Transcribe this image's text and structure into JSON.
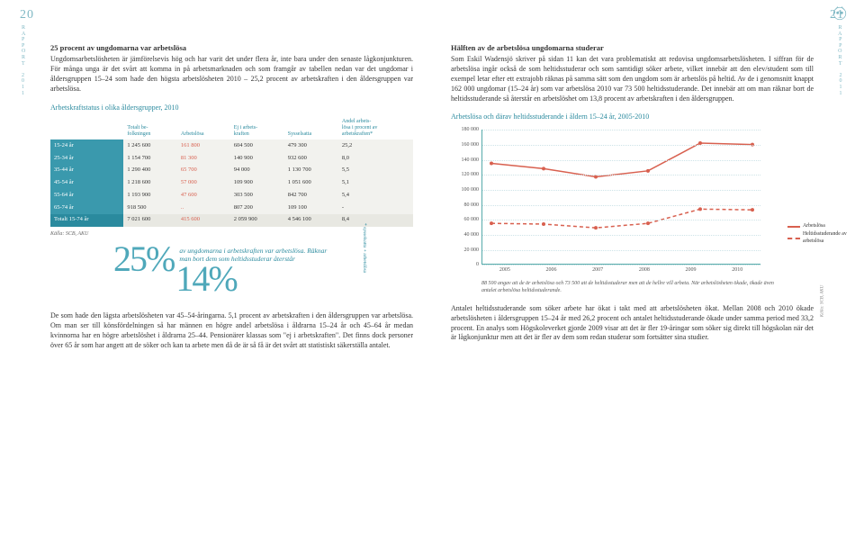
{
  "page_left_num": "20",
  "page_right_num": "21",
  "rapport_chars": "R\nA\nP\nP\nO\nR\nT\n2\n0\n1\n1",
  "left": {
    "h1": "25 procent av ungdomarna var arbetslösa",
    "p1": "Ungdomsarbetslösheten är jämförelsevis hög och har varit det under flera år, inte bara under den senaste lågkonjunkturen. För många unga är det svårt att komma in på arbetsmarknaden och som framgår av tabellen nedan var det ungdomar i åldersgruppen 15–24 som hade den högsta arbetslösheten 2010 – 25,2 procent av arbetskraften i den åldersgruppen var arbetslösa.",
    "table_title": "Arbetskraftstatus i olika åldersgrupper, 2010",
    "th": [
      "",
      "Totalt be-\nfolkningen",
      "Arbetslösa",
      "Ej i arbets-\nkraften",
      "Sysselsatta",
      "Andel arbets-\nlösa i procent av\narbetskraften*"
    ],
    "rows": [
      {
        "age": "15-24 år",
        "cells": [
          "1 245 600",
          "161 800",
          "604 500",
          "479 300",
          "25,2"
        ]
      },
      {
        "age": "25-34 år",
        "cells": [
          "1 154 700",
          "81 300",
          "140 900",
          "932 600",
          "8,0"
        ]
      },
      {
        "age": "35-44 år",
        "cells": [
          "1 290 400",
          "65 700",
          "94 000",
          "1 130 700",
          "5,5"
        ]
      },
      {
        "age": "45-54 år",
        "cells": [
          "1 218 600",
          "57 000",
          "109 900",
          "1 051 600",
          "5,1"
        ]
      },
      {
        "age": "55-64 år",
        "cells": [
          "1 193 900",
          "47 600",
          "303 500",
          "842 700",
          "5,4"
        ]
      },
      {
        "age": "65-74 år",
        "cells": [
          "918 500",
          "..",
          "807 200",
          "109 100",
          "-"
        ]
      }
    ],
    "total_row": {
      "age": "Totalt 15-74 år",
      "cells": [
        "7 021 600",
        "415 600",
        "2 059 900",
        "4 546 100",
        "8,4"
      ]
    },
    "source": "Källa: SCB, AKU",
    "side_note": "* sysselsatta + arbetslösa",
    "pct25": "25%",
    "pct_desc_a": "av ungdomarna i arbetskraften var arbetslösa. Räknar man bort dem som heltidsstuderar återstår",
    "pct14": "14%",
    "p2": "De som hade den lägsta arbetslösheten var 45–54-åringarna. 5,1 procent av arbetskraften i den åldersgruppen var arbetslösa. Om man ser till könsfördelningen så har männen en högre andel arbetslösa i åldrarna 15–24 år och 45–64 år medan kvinnorna har en högre arbetslöshet i åldrarna 25–44. Pensionärer klassas som \"ej i arbetskraften\". Det finns dock personer över 65 år som har angett att de söker och kan ta arbete men då de är så få är det svårt att statistiskt säkerställa antalet."
  },
  "right": {
    "h1": "Hälften av de arbetslösa ungdomarna studerar",
    "p1": "Som Eskil Wadensjö skriver på sidan 11 kan det vara problematiskt att redovisa ungdomsarbetslösheten. I siffran för de arbetslösa ingår också de som heltidsstuderar och som samtidigt söker arbete, vilket innebär att den elev/student som till exempel letar efter ett extrajobb räknas på samma sätt som den ungdom som är arbetslös på heltid. Av de i genomsnitt knappt 162 000 ungdomar (15–24 år) som var arbetslösa 2010 var 73 500 heltidsstuderande. Det innebär att om man räknar bort de heltidsstuderande så återstår en arbetslöshet om 13,8 procent av arbetskraften i den åldersgruppen.",
    "chart_title": "Arbetslösa och därav heltidsstuderande i åldern 15–24 år, 2005-2010",
    "chart": {
      "type": "line",
      "ylim": [
        0,
        180000
      ],
      "ytick_step": 20000,
      "yticks_labels": [
        "0",
        "20 000",
        "40 000",
        "60 000",
        "80 000",
        "100 000",
        "120 000",
        "140 000",
        "160 000",
        "180 000"
      ],
      "categories": [
        "2005",
        "2006",
        "2007",
        "2008",
        "2009",
        "2010"
      ],
      "series": [
        {
          "name": "Arbetslösa",
          "color": "#d8604f",
          "dash": "none",
          "values": [
            135000,
            128000,
            117000,
            125000,
            162000,
            160000
          ]
        },
        {
          "name": "Heltidsstuderande av arbetslösa",
          "color": "#d8604f",
          "dash": "4,3",
          "values": [
            55000,
            54000,
            49000,
            55000,
            74000,
            73000
          ]
        }
      ],
      "background_color": "#ffffff",
      "grid_color": "#cde3e7"
    },
    "chart_caption": "88 500 angav att de är arbetslösa och 73 500 att de heltidsstuderar men att de hellre vill arbeta. När arbetslösheten ökade, ökade även antalet arbetslösa heltidsstuderande.",
    "chart_source": "Källa: SCB, AKU",
    "p2": "Antalet heltidsstuderande som söker arbete har ökat i takt med att arbetslösheten ökat. Mellan 2008 och 2010 ökade arbetslösheten i åldersgruppen 15–24 år med 26,2 procent och antalet heltidsstuderande ökade under samma period med 33,2 procent. En analys som Högskoleverket gjorde 2009 visar att det är fler 19-åringar som söker sig direkt till högskolan när det är lågkonjunktur men att det är fler av dem som redan studerar som fortsätter sina studier."
  },
  "colors": {
    "teal": "#2a8a9e",
    "teal_light": "#4fa8ba",
    "red": "#d8604f",
    "row_bg": "#f2f2ee"
  }
}
